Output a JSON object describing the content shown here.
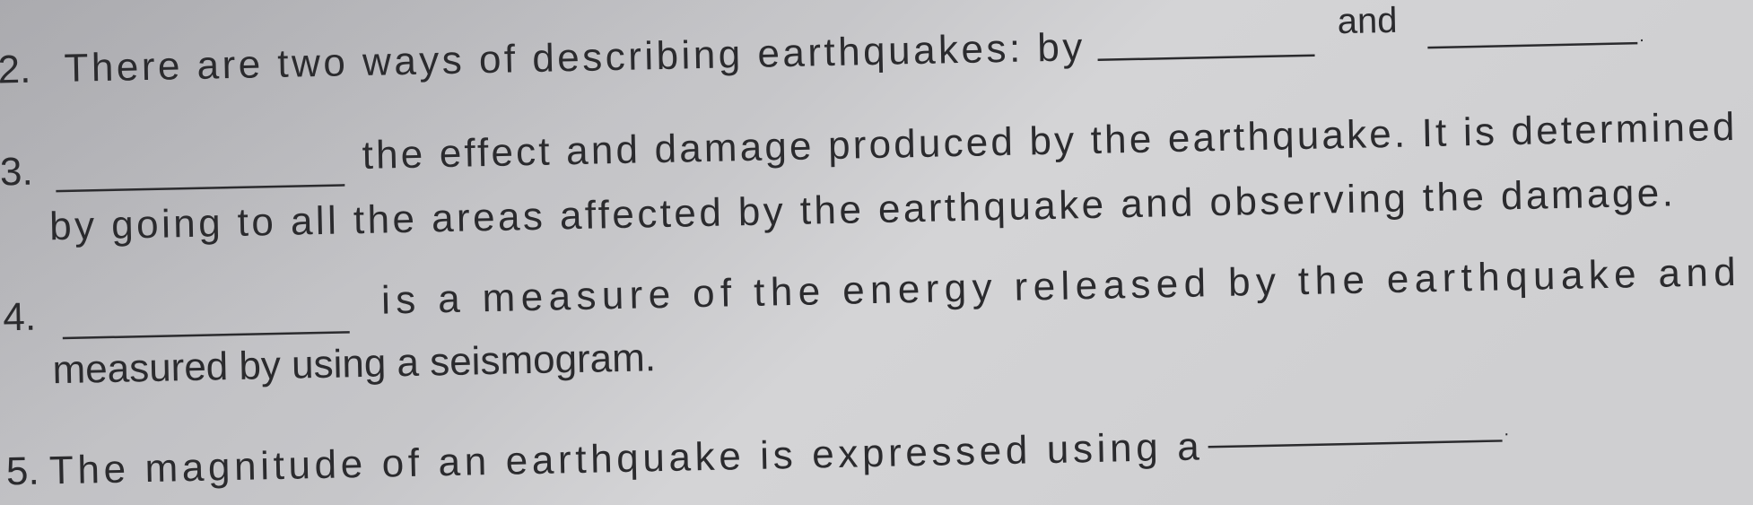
{
  "items": [
    {
      "number": "2.",
      "text": "There are two ways of describing earthquakes: by",
      "connector": "and",
      "end": "."
    },
    {
      "number": "3.",
      "lines": [
        "the effect and damage produced by the earthquake. It is determined",
        "by going to all the areas affected by the earthquake and observing the damage."
      ]
    },
    {
      "number": "4.",
      "lines": [
        "is a measure of the energy released by the earthquake and",
        "measured by using a seismogram."
      ]
    },
    {
      "number": "5.",
      "text": "The magnitude of an earthquake is expressed using a",
      "end": "."
    }
  ]
}
